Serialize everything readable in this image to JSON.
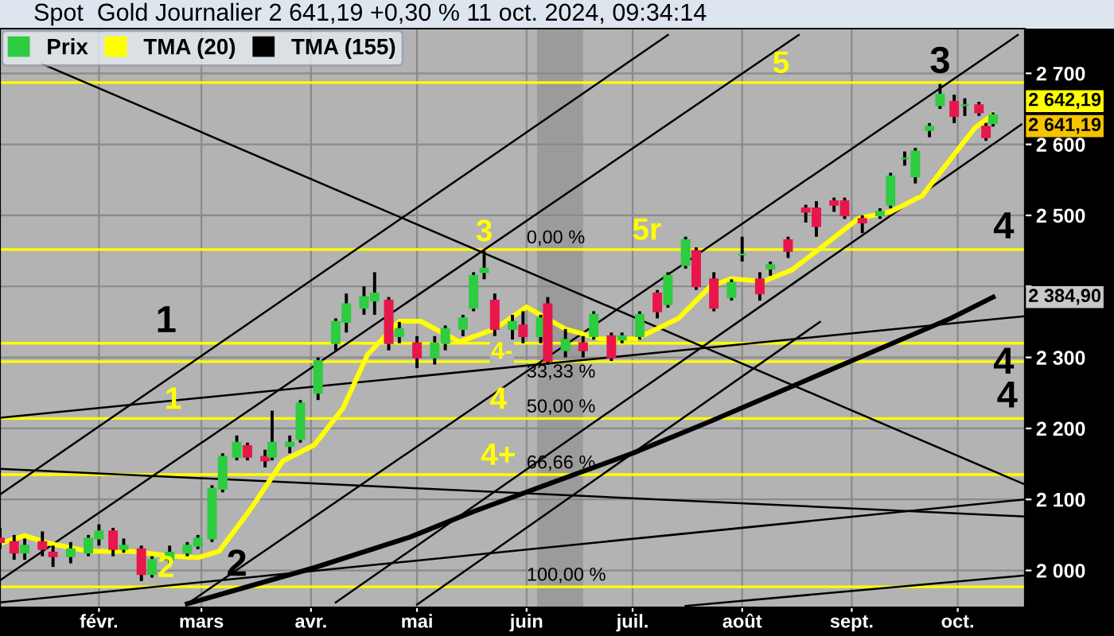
{
  "chart_data": {
    "type": "candlestick",
    "title": "Spot  Gold Journalier 2 641,19 +0,30 % 11 oct. 2024, 09:34:14",
    "xlim": [
      "2024-01-04",
      "2024-10-20"
    ],
    "ylim": [
      1948,
      2763
    ],
    "xticks": [
      {
        "value": "2024-02-01",
        "label": "févr."
      },
      {
        "value": "2024-03-01",
        "label": "mars"
      },
      {
        "value": "2024-04-01",
        "label": "avr."
      },
      {
        "value": "2024-05-01",
        "label": "mai"
      },
      {
        "value": "2024-06-01",
        "label": "juin"
      },
      {
        "value": "2024-07-01",
        "label": "juil."
      },
      {
        "value": "2024-08-01",
        "label": "août"
      },
      {
        "value": "2024-09-01",
        "label": "sept."
      },
      {
        "value": "2024-10-01",
        "label": "oct."
      }
    ],
    "yticks": [
      {
        "value": 2000,
        "label": "2 000"
      },
      {
        "value": 2100,
        "label": "2 100"
      },
      {
        "value": 2200,
        "label": "2 200"
      },
      {
        "value": 2300,
        "label": "2 300"
      },
      {
        "value": 2400,
        "label": null
      },
      {
        "value": 2500,
        "label": "2 500"
      },
      {
        "value": 2600,
        "label": "2 600"
      },
      {
        "value": 2700,
        "label": "2 700"
      }
    ],
    "grid": true,
    "legend": "top left",
    "series": [
      {
        "name": "Prix",
        "color": "#2ecc40",
        "x": [
          "2024-01-04",
          "2024-01-08",
          "2024-01-11",
          "2024-01-16",
          "2024-01-19",
          "2024-01-24",
          "2024-01-29",
          "2024-02-01",
          "2024-02-05",
          "2024-02-08",
          "2024-02-13",
          "2024-02-16",
          "2024-02-21",
          "2024-02-26",
          "2024-02-29",
          "2024-03-04",
          "2024-03-07",
          "2024-03-11",
          "2024-03-14",
          "2024-03-19",
          "2024-03-21",
          "2024-03-26",
          "2024-03-29",
          "2024-04-03",
          "2024-04-08",
          "2024-04-11",
          "2024-04-16",
          "2024-04-19",
          "2024-04-23",
          "2024-04-26",
          "2024-05-01",
          "2024-05-06",
          "2024-05-09",
          "2024-05-14",
          "2024-05-17",
          "2024-05-20",
          "2024-05-23",
          "2024-05-28",
          "2024-05-31",
          "2024-06-05",
          "2024-06-07",
          "2024-06-12",
          "2024-06-17",
          "2024-06-20",
          "2024-06-25",
          "2024-06-28",
          "2024-07-03",
          "2024-07-08",
          "2024-07-11",
          "2024-07-16",
          "2024-07-19",
          "2024-07-24",
          "2024-07-29",
          "2024-08-01",
          "2024-08-06",
          "2024-08-09",
          "2024-08-14",
          "2024-08-19",
          "2024-08-22",
          "2024-08-27",
          "2024-08-30",
          "2024-09-04",
          "2024-09-09",
          "2024-09-12",
          "2024-09-16",
          "2024-09-19",
          "2024-09-23",
          "2024-09-26",
          "2024-09-30",
          "2024-10-03",
          "2024-10-07",
          "2024-10-09",
          "2024-10-11"
        ],
        "ohlc": [
          [
            2045,
            2060,
            2030,
            2040
          ],
          [
            2040,
            2050,
            2015,
            2025
          ],
          [
            2025,
            2045,
            2015,
            2035
          ],
          [
            2040,
            2055,
            2020,
            2030
          ],
          [
            2025,
            2035,
            2005,
            2020
          ],
          [
            2020,
            2040,
            2010,
            2030
          ],
          [
            2025,
            2050,
            2020,
            2045
          ],
          [
            2045,
            2065,
            2035,
            2055
          ],
          [
            2055,
            2060,
            2020,
            2030
          ],
          [
            2030,
            2045,
            2025,
            2035
          ],
          [
            2030,
            2035,
            1985,
            1995
          ],
          [
            1995,
            2020,
            1990,
            2015
          ],
          [
            2015,
            2035,
            2010,
            2025
          ],
          [
            2025,
            2040,
            2020,
            2035
          ],
          [
            2035,
            2050,
            2030,
            2045
          ],
          [
            2045,
            2120,
            2040,
            2115
          ],
          [
            2115,
            2165,
            2110,
            2160
          ],
          [
            2160,
            2190,
            2155,
            2180
          ],
          [
            2175,
            2180,
            2155,
            2160
          ],
          [
            2160,
            2170,
            2145,
            2155
          ],
          [
            2160,
            2225,
            2155,
            2180
          ],
          [
            2175,
            2190,
            2165,
            2180
          ],
          [
            2185,
            2240,
            2180,
            2235
          ],
          [
            2250,
            2300,
            2240,
            2295
          ],
          [
            2320,
            2355,
            2310,
            2350
          ],
          [
            2350,
            2390,
            2335,
            2375
          ],
          [
            2370,
            2400,
            2360,
            2385
          ],
          [
            2380,
            2420,
            2360,
            2390
          ],
          [
            2380,
            2385,
            2310,
            2320
          ],
          [
            2330,
            2350,
            2320,
            2340
          ],
          [
            2320,
            2330,
            2285,
            2300
          ],
          [
            2300,
            2330,
            2290,
            2320
          ],
          [
            2320,
            2345,
            2310,
            2340
          ],
          [
            2340,
            2360,
            2330,
            2355
          ],
          [
            2370,
            2420,
            2365,
            2415
          ],
          [
            2420,
            2450,
            2410,
            2425
          ],
          [
            2380,
            2390,
            2330,
            2340
          ],
          [
            2340,
            2360,
            2325,
            2350
          ],
          [
            2345,
            2365,
            2320,
            2330
          ],
          [
            2330,
            2360,
            2320,
            2355
          ],
          [
            2375,
            2385,
            2290,
            2295
          ],
          [
            2310,
            2340,
            2300,
            2325
          ],
          [
            2320,
            2330,
            2300,
            2310
          ],
          [
            2330,
            2365,
            2325,
            2360
          ],
          [
            2330,
            2335,
            2295,
            2300
          ],
          [
            2325,
            2335,
            2320,
            2330
          ],
          [
            2330,
            2365,
            2325,
            2360
          ],
          [
            2390,
            2395,
            2355,
            2365
          ],
          [
            2375,
            2420,
            2370,
            2415
          ],
          [
            2430,
            2470,
            2425,
            2465
          ],
          [
            2450,
            2455,
            2395,
            2400
          ],
          [
            2410,
            2420,
            2365,
            2370
          ],
          [
            2385,
            2410,
            2380,
            2405
          ],
          [
            2445,
            2470,
            2435,
            2445
          ],
          [
            2410,
            2420,
            2380,
            2390
          ],
          [
            2425,
            2435,
            2415,
            2430
          ],
          [
            2465,
            2470,
            2440,
            2450
          ],
          [
            2510,
            2515,
            2490,
            2505
          ],
          [
            2510,
            2520,
            2470,
            2485
          ],
          [
            2520,
            2525,
            2505,
            2515
          ],
          [
            2520,
            2525,
            2495,
            2500
          ],
          [
            2495,
            2500,
            2475,
            2490
          ],
          [
            2500,
            2510,
            2495,
            2505
          ],
          [
            2515,
            2560,
            2510,
            2555
          ],
          [
            2580,
            2590,
            2570,
            2580
          ],
          [
            2555,
            2595,
            2545,
            2590
          ],
          [
            2620,
            2630,
            2610,
            2625
          ],
          [
            2655,
            2685,
            2650,
            2670
          ],
          [
            2660,
            2670,
            2630,
            2640
          ],
          [
            2655,
            2665,
            2640,
            2655
          ],
          [
            2655,
            2660,
            2640,
            2645
          ],
          [
            2625,
            2630,
            2605,
            2610
          ],
          [
            2630,
            2645,
            2625,
            2641.19
          ]
        ],
        "colors": [
          "#e8174b",
          "#e8174b",
          "#2ecc40",
          "#e8174b",
          "#e8174b",
          "#2ecc40",
          "#2ecc40",
          "#2ecc40",
          "#e8174b",
          "#2ecc40",
          "#e8174b",
          "#2ecc40",
          "#2ecc40",
          "#2ecc40",
          "#2ecc40",
          "#2ecc40",
          "#2ecc40",
          "#2ecc40",
          "#e8174b",
          "#e8174b",
          "#2ecc40",
          "#2ecc40",
          "#2ecc40",
          "#2ecc40",
          "#2ecc40",
          "#2ecc40",
          "#2ecc40",
          "#2ecc40",
          "#e8174b",
          "#2ecc40",
          "#e8174b",
          "#2ecc40",
          "#2ecc40",
          "#2ecc40",
          "#2ecc40",
          "#2ecc40",
          "#e8174b",
          "#2ecc40",
          "#e8174b",
          "#2ecc40",
          "#e8174b",
          "#2ecc40",
          "#e8174b",
          "#2ecc40",
          "#e8174b",
          "#2ecc40",
          "#2ecc40",
          "#e8174b",
          "#2ecc40",
          "#2ecc40",
          "#e8174b",
          "#e8174b",
          "#2ecc40",
          "#2ecc40",
          "#e8174b",
          "#2ecc40",
          "#e8174b",
          "#e8174b",
          "#e8174b",
          "#e8174b",
          "#e8174b",
          "#e8174b",
          "#2ecc40",
          "#2ecc40",
          "#2ecc40",
          "#2ecc40",
          "#2ecc40",
          "#2ecc40",
          "#e8174b",
          "#2ecc40",
          "#e8174b",
          "#e8174b",
          "#2ecc40"
        ]
      },
      {
        "name": "TMA (20)",
        "type": "line",
        "color": "#ffff00",
        "x": [
          "2024-01-04",
          "2024-01-11",
          "2024-01-18",
          "2024-01-29",
          "2024-02-10",
          "2024-02-22",
          "2024-02-29",
          "2024-03-06",
          "2024-03-15",
          "2024-03-24",
          "2024-04-02",
          "2024-04-10",
          "2024-04-17",
          "2024-04-26",
          "2024-05-02",
          "2024-05-13",
          "2024-05-23",
          "2024-06-01",
          "2024-06-12",
          "2024-06-22",
          "2024-07-02",
          "2024-07-14",
          "2024-07-23",
          "2024-07-29",
          "2024-08-07",
          "2024-08-15",
          "2024-08-25",
          "2024-09-03",
          "2024-09-12",
          "2024-09-21",
          "2024-09-30",
          "2024-10-06",
          "2024-10-11"
        ],
        "values": [
          2038,
          2049,
          2038,
          2027,
          2027,
          2020,
          2018,
          2027,
          2087,
          2154,
          2177,
          2228,
          2304,
          2351,
          2351,
          2322,
          2340,
          2371,
          2340,
          2326,
          2326,
          2355,
          2400,
          2411,
          2407,
          2423,
          2461,
          2496,
          2505,
          2528,
          2586,
          2624,
          2642.19
        ]
      },
      {
        "name": "TMA (155)",
        "type": "line",
        "color": "#000000",
        "x": [
          "2024-02-26",
          "2024-04-02",
          "2024-04-29",
          "2024-05-17",
          "2024-06-09",
          "2024-07-01",
          "2024-07-23",
          "2024-08-15",
          "2024-09-06",
          "2024-09-29",
          "2024-10-11"
        ],
        "values": [
          1953,
          2004,
          2047,
          2083,
          2125,
          2165,
          2210,
          2259,
          2306,
          2355,
          2384.9
        ]
      },
      {
        "type": "line",
        "color": "#000000",
        "x": [
          "2024-01-16",
          "2024-10-20"
        ],
        "values": [
          2713,
          2121
        ]
      },
      {
        "type": "line",
        "color": "#000000",
        "x": [
          "2024-02-26",
          "2024-10-18"
        ],
        "values": [
          1953,
          2754
        ]
      },
      {
        "type": "line",
        "color": "#000000",
        "x": [
          "2024-04-08",
          "2024-10-19"
        ],
        "values": [
          1955,
          2628
        ]
      },
      {
        "type": "line",
        "color": "#000000",
        "x": [
          "2024-01-04",
          "2024-07-11"
        ],
        "values": [
          2107,
          2754
        ]
      },
      {
        "type": "line",
        "color": "#000000",
        "x": [
          "2024-01-04",
          "2024-08-17"
        ],
        "values": [
          1986,
          2754
        ]
      },
      {
        "type": "line",
        "color": "#000000",
        "x": [
          "2024-05-01",
          "2024-08-23"
        ],
        "values": [
          1952,
          2350
        ]
      },
      {
        "type": "line",
        "color": "#000000",
        "x": [
          "2024-01-04",
          "2024-10-20"
        ],
        "values": [
          2215,
          2358
        ]
      },
      {
        "type": "line",
        "color": "#000000",
        "x": [
          "2024-01-04",
          "2024-10-20"
        ],
        "values": [
          2143,
          2076
        ]
      },
      {
        "type": "line",
        "color": "#000000",
        "x": [
          "2024-01-04",
          "2024-10-20"
        ],
        "values": [
          1955,
          2100
        ]
      },
      {
        "type": "line",
        "color": "#000000",
        "x": [
          "2024-07-16",
          "2024-10-20"
        ],
        "values": [
          1950,
          1993
        ]
      }
    ],
    "ref_lines": [
      {
        "axis": "y",
        "value": 2687,
        "color": "#ffff00"
      },
      {
        "axis": "y",
        "value": 2452,
        "color": "#ffff00"
      },
      {
        "axis": "y",
        "value": 2320,
        "color": "#ffff00"
      },
      {
        "axis": "y",
        "value": 2294,
        "color": "#ffff00"
      },
      {
        "axis": "y",
        "value": 2214,
        "color": "#ffff00"
      },
      {
        "axis": "y",
        "value": 2135,
        "color": "#ffff00"
      },
      {
        "axis": "y",
        "value": 1977,
        "color": "#ffff00"
      }
    ],
    "bands": [
      {
        "axis": "x",
        "from": "2024-06-04",
        "to": "2024-06-17",
        "color": "#8a8a8a"
      }
    ],
    "annotations": [
      {
        "text": "1",
        "x": "2024-02-20",
        "y": 2320
      },
      {
        "text": "1",
        "x": "2024-02-22",
        "y": 2214
      },
      {
        "text": "2",
        "x": "2024-02-20",
        "y": 1977
      },
      {
        "text": "2",
        "x": "2024-03-11",
        "y": 1977
      },
      {
        "text": "3",
        "x": "2024-05-20",
        "y": 2450
      },
      {
        "text": "3",
        "x": "2024-09-26",
        "y": 2685
      },
      {
        "text": "4-",
        "x": "2024-05-25",
        "y": 2294
      },
      {
        "text": "4",
        "x": "2024-05-24",
        "y": 2214
      },
      {
        "text": "4+",
        "x": "2024-05-24",
        "y": 2135
      },
      {
        "text": "4",
        "x": "2024-10-14",
        "y": 2452
      },
      {
        "text": "4",
        "x": "2024-10-14",
        "y": 2320
      },
      {
        "text": "4",
        "x": "2024-10-15",
        "y": 2214
      },
      {
        "text": "5",
        "x": "2024-08-12",
        "y": 2687
      },
      {
        "text": "5r",
        "x": "2024-07-05",
        "y": 2452
      },
      {
        "text": "0,00 %",
        "x": "2024-06-01",
        "y": 2452
      },
      {
        "text": "33,33 %",
        "x": "2024-06-01",
        "y": 2294
      },
      {
        "text": "50,00 %",
        "x": "2024-06-01",
        "y": 2214
      },
      {
        "text": "66,66 %",
        "x": "2024-06-01",
        "y": 2135
      },
      {
        "text": "100,00 %",
        "x": "2024-06-01",
        "y": 1977
      },
      {
        "text": "2 642,19",
        "x": "2024-10-11",
        "y": 2642.19
      },
      {
        "text": "2 641,19",
        "x": "2024-10-11",
        "y": 2641.19
      },
      {
        "text": "2 384,90",
        "x": "2024-10-11",
        "y": 2384.9
      }
    ]
  }
}
